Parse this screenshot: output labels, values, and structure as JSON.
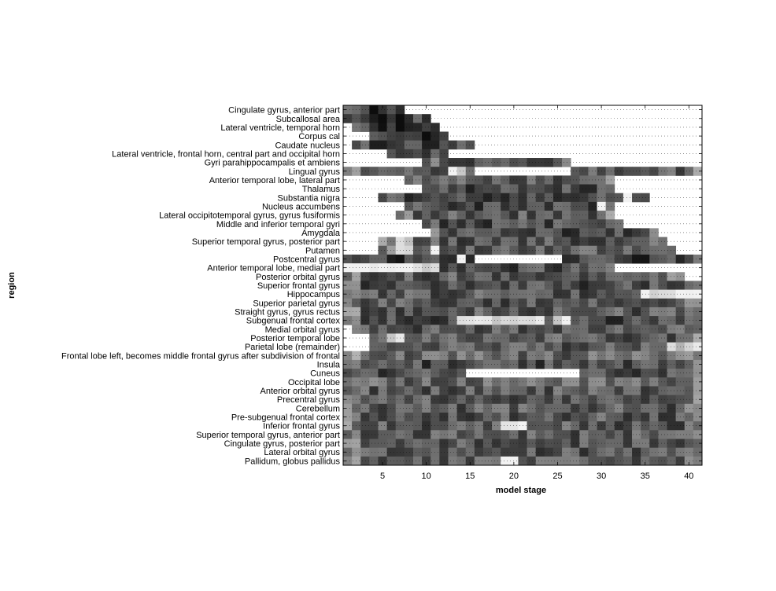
{
  "chart_data": {
    "type": "heatmap",
    "title": "",
    "xlabel": "model stage",
    "ylabel": "region",
    "x_ticks": [
      5,
      10,
      15,
      20,
      25,
      30,
      35,
      40
    ],
    "xlim": [
      0.5,
      41.5
    ],
    "n_stages": 41,
    "colormap": "gray (black = high, white = low)",
    "grid": "dotted horizontal lines",
    "regions": [
      "Cingulate gyrus, anterior part",
      "Subcallosal area",
      "Lateral ventricle, temporal horn",
      "Corpus cal",
      "Caudate nucleus",
      "Lateral ventricle, frontal horn, central part and occipital horn",
      "Gyri parahippocampalis et ambiens",
      "Lingual gyrus",
      "Anterior temporal lobe, lateral part",
      "Thalamus",
      "Substantia nigra",
      "Nucleus accumbens",
      "Lateral occipitotemporal gyrus, gyrus fusiformis",
      "Middle and inferior temporal gyri",
      "Amygdala",
      "Superior temporal gyrus, posterior part",
      "Putamen",
      "Postcentral gyrus",
      "Anterior temporal lobe, medial part",
      "Posterior orbital gyrus",
      "Superior frontal gyrus",
      "Hippocampus",
      "Superior parietal gyrus",
      "Straight gyrus, gyrus rectus",
      "Subgenual frontal cortex",
      "Medial orbital gyrus",
      "Posterior temporal lobe",
      "Parietal lobe (remainder)",
      "Frontal lobe left, becomes middle frontal gyrus after subdivision of frontal",
      "Insula",
      "Cuneus",
      "Occipital lobe",
      "Anterior orbital gyrus",
      "Precentral gyrus",
      "Cerebellum",
      "Pre-subgenual frontal cortex",
      "Inferior frontal gyrus",
      "Superior temporal gyrus, anterior part",
      "Cingulate gyrus, posterior part",
      "Lateral orbital gyrus",
      "Pallidum, globus pallidus"
    ],
    "spans": [
      [
        1,
        7,
        0.85,
        41,
        41,
        0.5
      ],
      [
        1,
        10,
        0.85
      ],
      [
        2,
        11,
        0.8
      ],
      [
        4,
        12,
        0.85
      ],
      [
        2,
        15,
        0.75
      ],
      [
        6,
        12,
        0.85
      ],
      [
        10,
        26,
        0.7
      ],
      [
        1,
        41,
        0.65,
        13,
        14,
        0.05,
        16,
        26,
        0.0
      ],
      [
        8,
        31,
        0.65
      ],
      [
        10,
        31,
        0.7
      ],
      [
        5,
        35,
        0.7,
        33,
        33,
        0.05
      ],
      [
        8,
        31,
        0.7,
        30,
        30,
        0.05
      ],
      [
        7,
        31,
        0.65
      ],
      [
        10,
        32,
        0.7
      ],
      [
        11,
        36,
        0.7
      ],
      [
        5,
        37,
        0.65,
        7,
        8,
        0.2
      ],
      [
        5,
        38,
        0.65,
        7,
        8,
        0.1,
        11,
        11,
        0.1
      ],
      [
        1,
        41,
        0.75,
        14,
        14,
        0.05,
        16,
        25,
        0.0
      ],
      [
        1,
        31,
        0.7,
        1,
        11,
        0.05
      ],
      [
        1,
        39,
        0.65
      ],
      [
        1,
        41,
        0.7
      ],
      [
        1,
        41,
        0.65,
        35,
        41,
        0.05
      ],
      [
        1,
        41,
        0.65
      ],
      [
        1,
        41,
        0.65
      ],
      [
        1,
        41,
        0.7,
        14,
        23,
        0.05,
        25,
        26,
        0.05
      ],
      [
        2,
        41,
        0.65
      ],
      [
        4,
        41,
        0.65,
        6,
        7,
        0.05
      ],
      [
        4,
        41,
        0.65,
        38,
        41,
        0.2
      ],
      [
        1,
        41,
        0.6
      ],
      [
        1,
        41,
        0.7
      ],
      [
        1,
        41,
        0.7,
        15,
        27,
        0.0
      ],
      [
        1,
        41,
        0.6
      ],
      [
        1,
        41,
        0.65
      ],
      [
        1,
        41,
        0.65
      ],
      [
        1,
        41,
        0.65
      ],
      [
        1,
        41,
        0.65
      ],
      [
        1,
        41,
        0.65,
        19,
        21,
        0.05
      ],
      [
        1,
        41,
        0.65
      ],
      [
        1,
        41,
        0.65
      ],
      [
        1,
        41,
        0.65
      ],
      [
        1,
        41,
        0.65,
        19,
        20,
        0.05
      ]
    ]
  }
}
